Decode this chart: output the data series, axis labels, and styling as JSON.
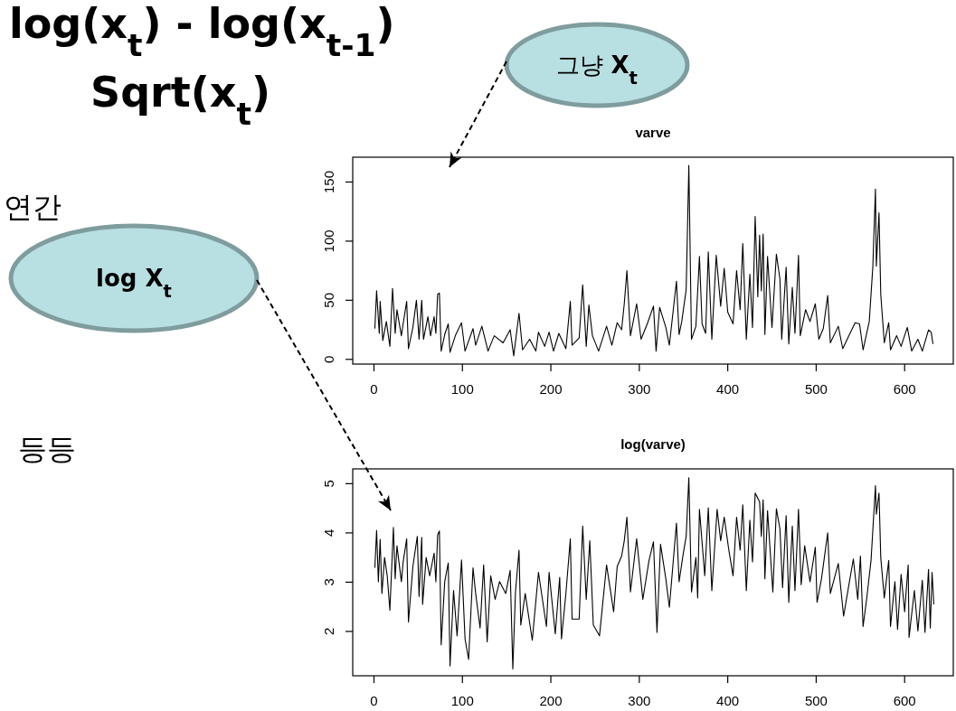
{
  "chart_data": [
    {
      "type": "line",
      "title": "varve",
      "color": "#000000",
      "xlim": [
        -24,
        655
      ],
      "ylim": [
        -4,
        171
      ],
      "xticks": [
        0,
        100,
        200,
        300,
        400,
        500,
        600
      ],
      "yticks": [
        0,
        50,
        100,
        150
      ],
      "annotations": [
        "그냥 **X$_{t}$**"
      ],
      "x": [
        1,
        3,
        6,
        7,
        10,
        14,
        18,
        21,
        24,
        26,
        31,
        33,
        37,
        39,
        44,
        48,
        51,
        54,
        56,
        61,
        64,
        68,
        70,
        72,
        74,
        76,
        80,
        84,
        86,
        92,
        99,
        103,
        112,
        115,
        122,
        129,
        136,
        146,
        154,
        158,
        164,
        168,
        176,
        183,
        186,
        193,
        198,
        203,
        209,
        217,
        222,
        224,
        232,
        236,
        240,
        243,
        247,
        254,
        263,
        269,
        275,
        280,
        283,
        286,
        290,
        297,
        302,
        309,
        316,
        319,
        323,
        330,
        334,
        342,
        345,
        348,
        353,
        356,
        359,
        364,
        368,
        371,
        375,
        378,
        382,
        387,
        392,
        396,
        400,
        406,
        410,
        414,
        417,
        421,
        425,
        428,
        431,
        434,
        436,
        438,
        440,
        442,
        445,
        450,
        455,
        459,
        461,
        466,
        469,
        473,
        476,
        480,
        482,
        488,
        493,
        499,
        503,
        508,
        513,
        516,
        525,
        530,
        537,
        544,
        549,
        553,
        560,
        564,
        567,
        568,
        571,
        573,
        577,
        582,
        584,
        591,
        596,
        603,
        608,
        615,
        620,
        627,
        630,
        632
      ],
      "values": [
        26,
        58,
        22,
        49,
        16,
        32,
        11,
        60,
        22,
        42,
        20,
        30,
        49,
        9,
        27,
        50,
        17,
        50,
        17,
        36,
        20,
        36,
        22,
        55,
        56,
        7,
        21,
        30,
        6,
        20,
        31,
        7,
        26,
        12,
        28,
        7,
        20,
        14,
        25,
        3,
        39,
        8,
        17,
        7,
        23,
        11,
        23,
        7,
        22,
        9,
        49,
        12,
        18,
        63,
        11,
        46,
        20,
        7,
        28,
        12,
        31,
        25,
        47,
        75,
        20,
        47,
        17,
        30,
        45,
        7,
        44,
        27,
        12,
        66,
        21,
        32,
        59,
        164,
        17,
        28,
        87,
        30,
        22,
        91,
        17,
        88,
        45,
        77,
        40,
        30,
        75,
        42,
        98,
        17,
        72,
        27,
        121,
        53,
        105,
        58,
        106,
        21,
        87,
        27,
        89,
        68,
        17,
        78,
        13,
        61,
        22,
        88,
        20,
        42,
        32,
        47,
        17,
        26,
        54,
        14,
        28,
        9,
        20,
        31,
        30,
        8,
        32,
        78,
        144,
        79,
        124,
        55,
        14,
        31,
        8,
        20,
        11,
        27,
        7,
        17,
        7,
        25,
        23,
        13
      ]
    },
    {
      "type": "line",
      "title": "log(varve)",
      "color": "#000000",
      "xlim": [
        -24,
        655
      ],
      "ylim": [
        1.1,
        5.3
      ],
      "xticks": [
        0,
        100,
        200,
        300,
        400,
        500,
        600
      ],
      "yticks": [
        2,
        3,
        4,
        5
      ],
      "annotations": [
        "log X$_{t}$"
      ],
      "x": [
        1,
        3,
        5,
        7,
        9,
        12,
        15,
        18,
        22,
        24,
        26,
        31,
        33,
        37,
        39,
        44,
        49,
        51,
        54,
        55,
        59,
        63,
        68,
        70,
        72,
        74,
        76,
        80,
        84,
        86,
        90,
        94,
        99,
        103,
        107,
        112,
        115,
        120,
        124,
        128,
        132,
        137,
        142,
        149,
        154,
        157,
        160,
        164,
        166,
        171,
        179,
        186,
        195,
        198,
        205,
        210,
        212,
        217,
        222,
        224,
        232,
        236,
        240,
        244,
        248,
        255,
        263,
        271,
        275,
        280,
        283,
        286,
        290,
        297,
        304,
        311,
        316,
        320,
        324,
        330,
        334,
        342,
        345,
        349,
        353,
        356,
        359,
        364,
        366,
        368,
        374,
        378,
        382,
        388,
        392,
        396,
        401,
        406,
        410,
        414,
        417,
        421,
        425,
        428,
        431,
        436,
        438,
        440,
        442,
        445,
        451,
        455,
        459,
        462,
        466,
        469,
        473,
        476,
        480,
        483,
        487,
        493,
        499,
        501,
        506,
        513,
        516,
        525,
        531,
        537,
        542,
        547,
        550,
        553,
        557,
        562,
        567,
        568,
        571,
        573,
        577,
        582,
        584,
        589,
        592,
        596,
        600,
        604,
        605,
        611,
        615,
        620,
        623,
        627,
        629,
        631,
        633
      ],
      "values": [
        3.29,
        4.05,
        3.01,
        3.87,
        2.77,
        3.5,
        3.13,
        2.43,
        4.11,
        3.07,
        3.74,
        3.01,
        3.41,
        3.88,
        2.19,
        3.32,
        3.93,
        2.71,
        3.91,
        2.55,
        3.5,
        3.13,
        3.59,
        3.01,
        3.96,
        4.04,
        1.73,
        3.01,
        3.39,
        1.3,
        2.83,
        1.91,
        3.45,
        1.85,
        1.43,
        3.29,
        2.77,
        2.07,
        3.35,
        1.79,
        3.13,
        2.65,
        3.01,
        2.77,
        3.24,
        1.24,
        2.8,
        3.65,
        2.13,
        2.77,
        1.82,
        3.2,
        2.1,
        3.2,
        1.95,
        3.1,
        1.85,
        2.77,
        3.88,
        2.25,
        2.25,
        4.14,
        2.65,
        3.84,
        2.13,
        1.91,
        3.35,
        2.4,
        3.32,
        3.53,
        3.84,
        4.32,
        2.8,
        3.88,
        2.65,
        3.44,
        3.82,
        1.98,
        3.77,
        3.07,
        2.49,
        4.2,
        3.01,
        3.5,
        3.93,
        5.12,
        2.8,
        3.5,
        2.68,
        4.48,
        3.13,
        4.51,
        2.83,
        4.48,
        3.84,
        4.32,
        3.68,
        3.13,
        4.32,
        3.65,
        4.57,
        2.83,
        4.26,
        3.41,
        4.81,
        4.63,
        3.93,
        4.67,
        3.07,
        4.45,
        2.8,
        4.49,
        4.08,
        2.89,
        4.35,
        2.59,
        4.14,
        2.83,
        4.48,
        2.95,
        3.74,
        3.01,
        3.71,
        2.59,
        3.07,
        4.0,
        2.77,
        3.38,
        2.31,
        2.95,
        3.47,
        2.65,
        3.53,
        2.1,
        2.65,
        3.44,
        4.96,
        4.38,
        4.81,
        3.5,
        2.68,
        3.44,
        2.1,
        3.01,
        2.04,
        3.16,
        2.4,
        3.35,
        1.88,
        2.83,
        2.01,
        3.04,
        1.98,
        3.26,
        2.07,
        3.2,
        2.55
      ]
    },
    {
      "type": "other",
      "annotations": [
        "log(x$_{t}$) - log(x$_{t-1}$)",
        "Sqrt(x$_{t}$)",
        "연간",
        "등등"
      ]
    }
  ]
}
